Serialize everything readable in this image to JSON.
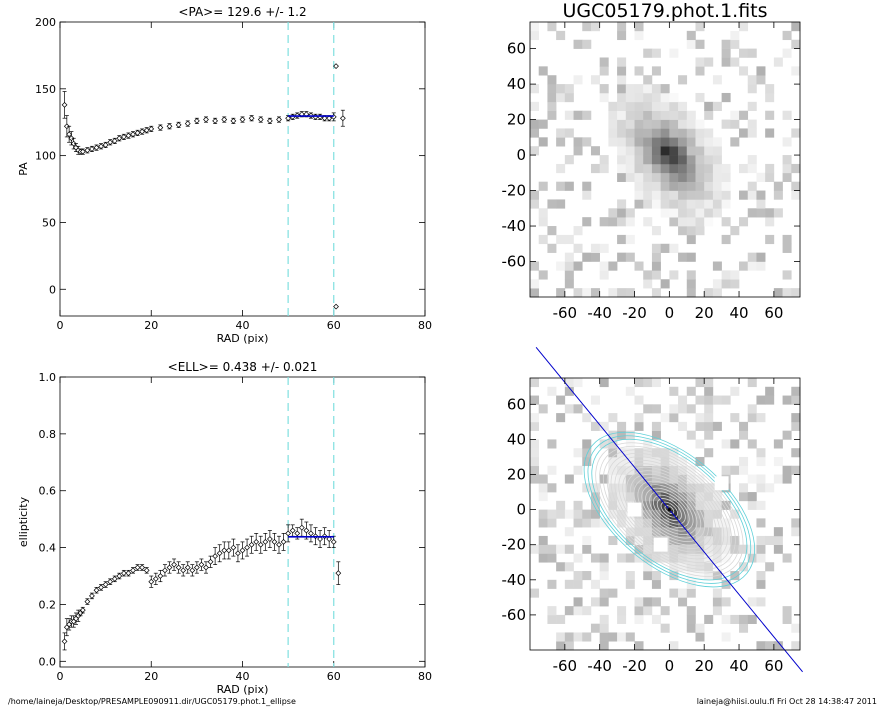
{
  "footer": {
    "path": "/home/laineja/Desktop/PRESAMPLE090911.dir/UGC05179.phot.1_ellipse",
    "user_stamp": "laineja@hiisi.oulu.fi  Fri Oct 28 14:38:47 2011"
  },
  "colors": {
    "fit_line": "#0000cc",
    "fit_range": "#7fdfe0",
    "contour": "#d8d8d8",
    "contour_outer": "#5fd0d8"
  },
  "chart_data": [
    {
      "type": "scatter",
      "title": "<PA>= 129.6 +/-   1.2",
      "xlabel": "RAD (pix)",
      "ylabel": "PA",
      "xlim": [
        0,
        80
      ],
      "ylim": [
        -20,
        200
      ],
      "xticks": [
        0,
        20,
        40,
        60,
        80
      ],
      "yticks": [
        0,
        50,
        100,
        150,
        200
      ],
      "fit_range": [
        50,
        60
      ],
      "fit_value": 129.6,
      "x": [
        1,
        1.5,
        2,
        2.5,
        3,
        3.5,
        4,
        4.5,
        5,
        6,
        7,
        8,
        9,
        10,
        11,
        12,
        13,
        14,
        15,
        16,
        17,
        18,
        19,
        20,
        22,
        24,
        26,
        28,
        30,
        32,
        34,
        36,
        38,
        40,
        42,
        44,
        46,
        48,
        50,
        51,
        52,
        53,
        54,
        55,
        56,
        57,
        58,
        59,
        60,
        60.5,
        62
      ],
      "y": [
        138,
        122,
        116,
        113,
        109,
        106,
        104,
        103,
        103,
        104,
        105,
        106,
        107,
        108,
        110,
        111,
        113,
        114,
        115,
        116,
        117,
        118,
        119,
        120,
        121,
        122,
        123,
        124,
        126,
        127,
        126,
        127,
        126,
        127,
        128,
        127,
        126,
        127,
        128,
        129,
        130,
        131,
        131,
        130,
        129,
        129,
        128,
        128,
        129,
        -13,
        128
      ],
      "err": [
        10,
        8,
        6,
        5,
        4,
        3,
        3,
        2,
        2,
        2,
        2,
        2,
        2,
        2,
        2,
        2,
        2,
        2,
        2,
        2,
        2,
        2,
        2,
        2,
        2,
        2,
        2,
        2,
        2,
        2,
        2,
        2,
        2,
        2,
        2,
        2,
        2,
        2,
        2,
        2,
        2,
        2,
        2,
        2,
        2,
        2,
        2,
        2,
        3,
        0,
        6
      ],
      "outliers": [
        {
          "x": 60.5,
          "y": 167
        }
      ]
    },
    {
      "type": "scatter",
      "title": "<ELL>= 0.438 +/-  0.021",
      "xlabel": "RAD (pix)",
      "ylabel": "ellipticity",
      "xlim": [
        0,
        80
      ],
      "ylim": [
        -0.02,
        1.0
      ],
      "xticks": [
        0,
        20,
        40,
        60,
        80
      ],
      "yticks": [
        0.0,
        0.2,
        0.4,
        0.6,
        0.8,
        1.0
      ],
      "ytick_labels": [
        "0.0",
        "0.2",
        "0.4",
        "0.6",
        "0.8",
        "1.0"
      ],
      "fit_range": [
        50,
        60
      ],
      "fit_value": 0.438,
      "x": [
        1,
        1.5,
        2,
        2.5,
        3,
        3.5,
        4,
        4.5,
        5,
        6,
        7,
        8,
        9,
        10,
        11,
        12,
        13,
        14,
        15,
        16,
        17,
        18,
        19,
        20,
        21,
        22,
        23,
        24,
        25,
        26,
        27,
        28,
        29,
        30,
        31,
        32,
        33,
        34,
        35,
        36,
        37,
        38,
        39,
        40,
        41,
        42,
        43,
        44,
        45,
        46,
        47,
        48,
        49,
        50,
        51,
        52,
        53,
        54,
        55,
        56,
        57,
        58,
        59,
        60,
        61
      ],
      "y": [
        0.07,
        0.12,
        0.13,
        0.14,
        0.14,
        0.15,
        0.16,
        0.17,
        0.18,
        0.21,
        0.23,
        0.25,
        0.26,
        0.27,
        0.28,
        0.29,
        0.3,
        0.31,
        0.31,
        0.32,
        0.33,
        0.33,
        0.32,
        0.28,
        0.29,
        0.3,
        0.32,
        0.33,
        0.34,
        0.33,
        0.32,
        0.33,
        0.32,
        0.33,
        0.34,
        0.33,
        0.35,
        0.37,
        0.38,
        0.39,
        0.39,
        0.4,
        0.38,
        0.39,
        0.4,
        0.41,
        0.42,
        0.41,
        0.42,
        0.43,
        0.42,
        0.41,
        0.42,
        0.45,
        0.46,
        0.45,
        0.47,
        0.46,
        0.45,
        0.44,
        0.43,
        0.44,
        0.43,
        0.42,
        0.31
      ],
      "err": [
        0.03,
        0.03,
        0.02,
        0.02,
        0.02,
        0.02,
        0.02,
        0.01,
        0.01,
        0.01,
        0.01,
        0.01,
        0.01,
        0.01,
        0.01,
        0.01,
        0.01,
        0.01,
        0.01,
        0.01,
        0.01,
        0.01,
        0.01,
        0.02,
        0.02,
        0.02,
        0.02,
        0.02,
        0.02,
        0.02,
        0.02,
        0.02,
        0.02,
        0.02,
        0.02,
        0.02,
        0.02,
        0.03,
        0.03,
        0.03,
        0.03,
        0.03,
        0.03,
        0.03,
        0.03,
        0.03,
        0.03,
        0.03,
        0.03,
        0.03,
        0.03,
        0.03,
        0.03,
        0.03,
        0.02,
        0.02,
        0.03,
        0.03,
        0.03,
        0.03,
        0.03,
        0.03,
        0.03,
        0.02,
        0.04
      ]
    },
    {
      "type": "heatmap",
      "title": "UGC05179.phot.1.fits",
      "xlim": [
        -80,
        75
      ],
      "ylim": [
        -80,
        75
      ],
      "xticks": [
        -60,
        -40,
        -20,
        0,
        20,
        40,
        60
      ],
      "yticks": [
        -60,
        -40,
        -20,
        0,
        20,
        40,
        60
      ]
    },
    {
      "type": "heatmap",
      "title": "",
      "xlim": [
        -80,
        75
      ],
      "ylim": [
        -80,
        75
      ],
      "xticks": [
        -60,
        -40,
        -20,
        0,
        20,
        40,
        60
      ],
      "yticks": [
        -60,
        -40,
        -20,
        0,
        20,
        40,
        60
      ],
      "ellipse_pa_deg": 129.6,
      "ellipse_ell": 0.438,
      "ellipse_max_sma": 58
    }
  ]
}
